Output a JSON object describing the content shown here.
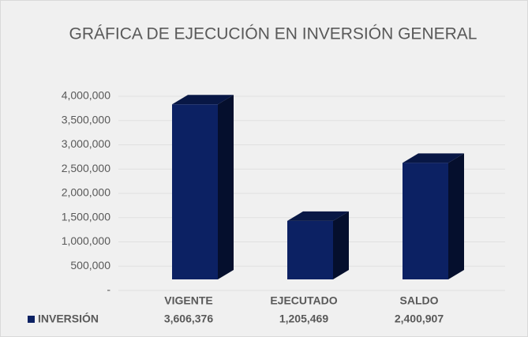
{
  "chart_data": {
    "type": "bar3d",
    "title": "GRÁFICA DE EJECUCIÓN EN INVERSIÓN GENERAL",
    "categories": [
      "VIGENTE",
      "EJECUTADO",
      "SALDO"
    ],
    "series": [
      {
        "name": "INVERSIÓN",
        "color": "#0c2163",
        "values": [
          3606376,
          1205469,
          2400907
        ],
        "value_labels": [
          "3,606,376",
          "1,205,469",
          "2,400,907"
        ]
      }
    ],
    "ylim": [
      0,
      4000000
    ],
    "yticks": [
      {
        "value": 0,
        "label": "-"
      },
      {
        "value": 500000,
        "label": "500,000"
      },
      {
        "value": 1000000,
        "label": "1,000,000"
      },
      {
        "value": 1500000,
        "label": "1,500,000"
      },
      {
        "value": 2000000,
        "label": "2,000,000"
      },
      {
        "value": 2500000,
        "label": "2,500,000"
      },
      {
        "value": 3000000,
        "label": "3,000,000"
      },
      {
        "value": 3500000,
        "label": "3,500,000"
      },
      {
        "value": 4000000,
        "label": "4,000,000"
      }
    ],
    "grid": true
  }
}
